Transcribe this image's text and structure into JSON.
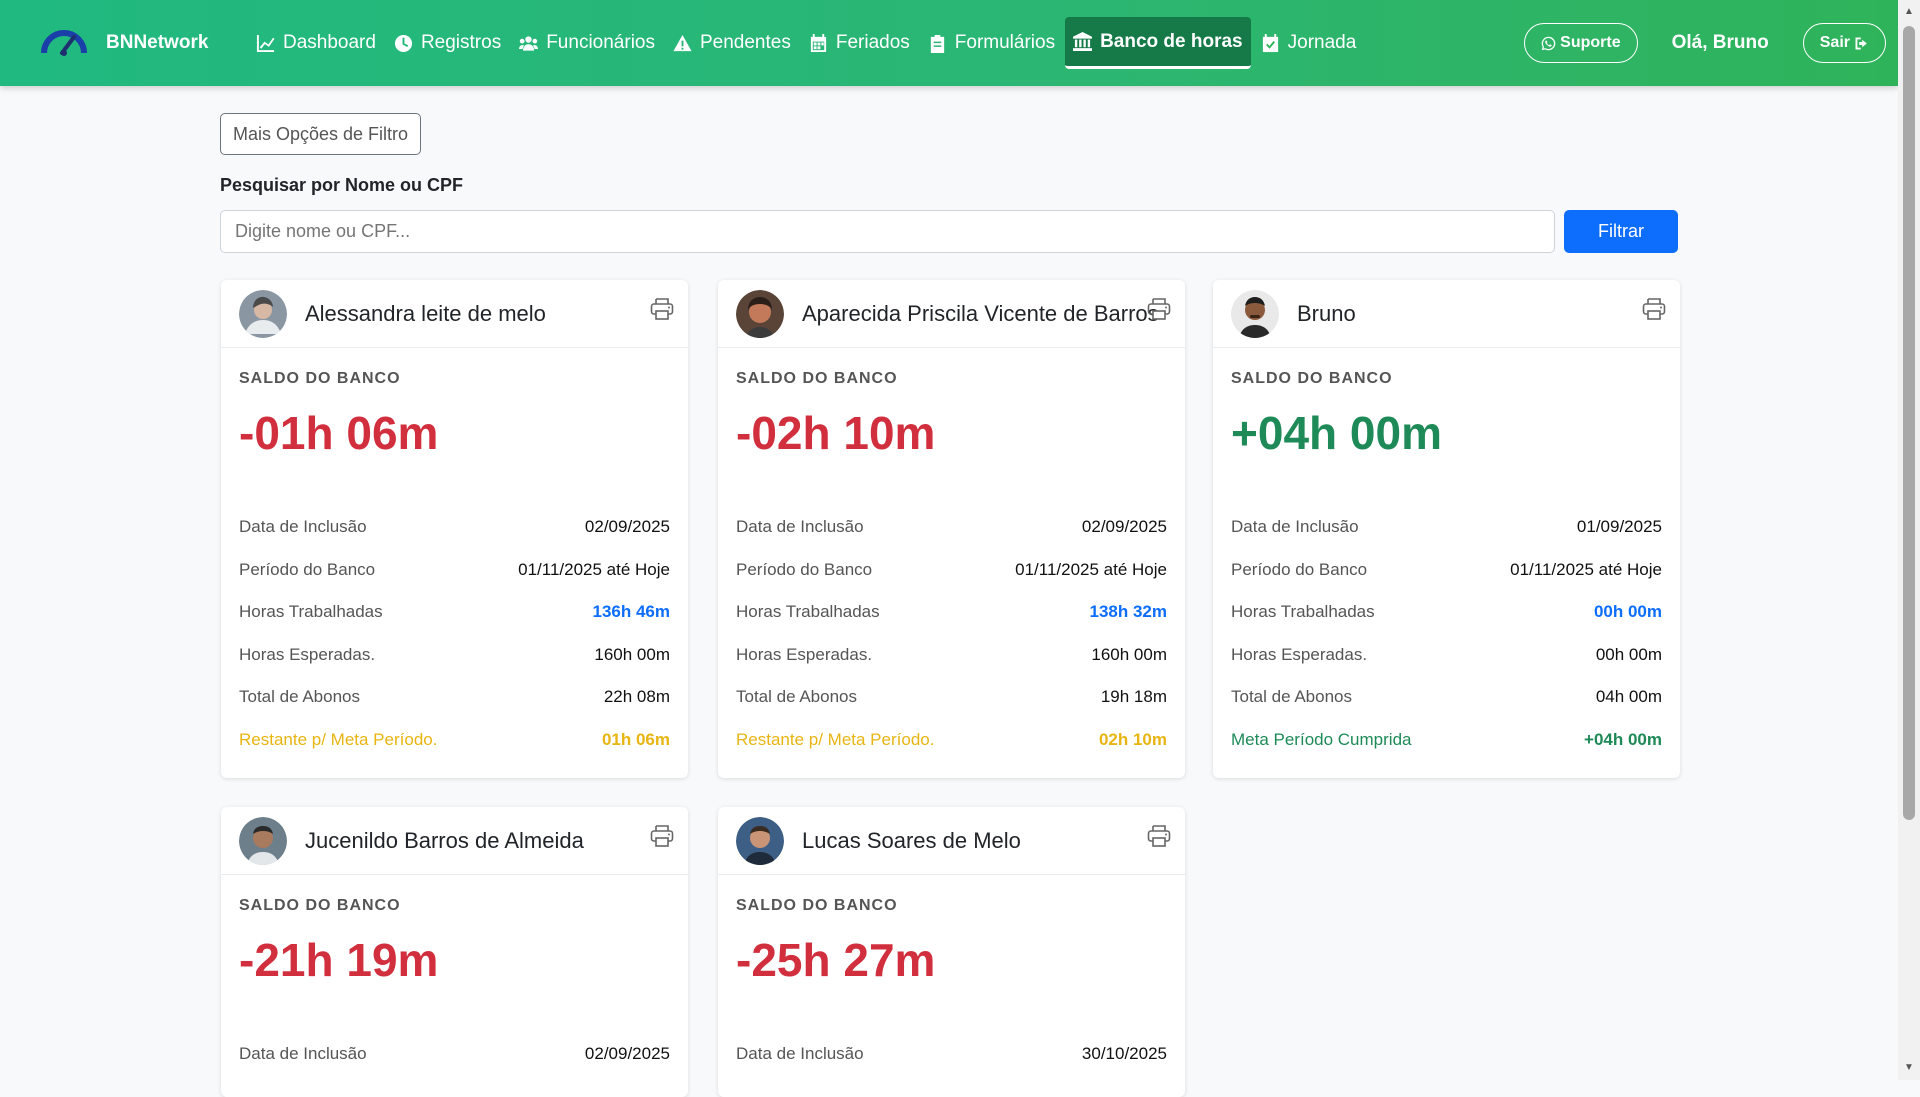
{
  "brand": {
    "name": "BNNetwork"
  },
  "nav": [
    {
      "label": "Dashboard",
      "icon": "chart-line-icon"
    },
    {
      "label": "Registros",
      "icon": "clock-icon"
    },
    {
      "label": "Funcionários",
      "icon": "users-icon"
    },
    {
      "label": "Pendentes",
      "icon": "warning-icon"
    },
    {
      "label": "Feriados",
      "icon": "calendar-icon"
    },
    {
      "label": "Formulários",
      "icon": "clipboard-icon"
    },
    {
      "label": "Banco de horas",
      "icon": "bank-icon",
      "active": true
    },
    {
      "label": "Jornada",
      "icon": "calendar-check-icon"
    }
  ],
  "header": {
    "support_label": "Suporte",
    "greeting": "Olá, Bruno",
    "logout_label": "Sair"
  },
  "filters": {
    "more_options_label": "Mais Opções de Filtro",
    "search_label": "Pesquisar por Nome ou CPF",
    "search_placeholder": "Digite nome ou CPF...",
    "filter_button_label": "Filtrar"
  },
  "labels": {
    "saldo": "SALDO DO BANCO",
    "inclusao": "Data de Inclusão",
    "periodo": "Período do Banco",
    "trabalhadas": "Horas Trabalhadas",
    "esperadas": "Horas Esperadas.",
    "abonos": "Total de Abonos"
  },
  "cards": [
    {
      "name": "Alessandra leite de melo",
      "saldo": "-01h 06m",
      "inclusao": "02/09/2025",
      "periodo": "01/11/2025 até Hoje",
      "trabalhadas": "136h 46m",
      "esperadas": "160h 00m",
      "abonos": "22h 08m",
      "meta_label": "Restante p/ Meta Período.",
      "meta_value": "01h 06m"
    },
    {
      "name": "Aparecida Priscila Vicente de Barros",
      "saldo": "-02h 10m",
      "inclusao": "02/09/2025",
      "periodo": "01/11/2025 até Hoje",
      "trabalhadas": "138h 32m",
      "esperadas": "160h 00m",
      "abonos": "19h 18m",
      "meta_label": "Restante p/ Meta Período.",
      "meta_value": "02h 10m"
    },
    {
      "name": "Bruno",
      "saldo": "+04h 00m",
      "inclusao": "01/09/2025",
      "periodo": "01/11/2025 até Hoje",
      "trabalhadas": "00h 00m",
      "esperadas": "00h 00m",
      "abonos": "04h 00m",
      "meta_label": "Meta Período Cumprida",
      "meta_value": "+04h 00m"
    },
    {
      "name": "Jucenildo Barros de Almeida",
      "saldo": "-21h 19m",
      "inclusao": "02/09/2025"
    },
    {
      "name": "Lucas Soares de Melo",
      "saldo": "-25h 27m",
      "inclusao": "30/10/2025"
    }
  ]
}
